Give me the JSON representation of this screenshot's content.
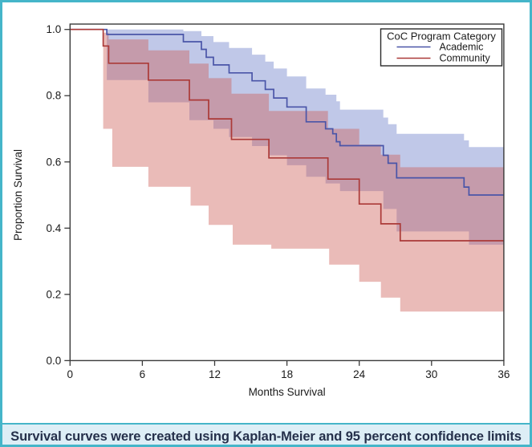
{
  "figure": {
    "caption": "Survival curves were created using Kaplan-Meier and 95 percent confidence limits",
    "border_color": "#45b5c9",
    "caption_bg": "#ddeef6",
    "caption_text_color": "#25304b",
    "plot_bg": "#ffffff"
  },
  "chart_data": {
    "type": "line",
    "subtype": "kaplan-meier-step-with-confidence-bands",
    "title": "",
    "xlabel": "Months Survival",
    "ylabel": "Proportion Survival",
    "xlim": [
      0,
      36
    ],
    "ylim": [
      0.0,
      1.0
    ],
    "xticks": [
      "0",
      "6",
      "12",
      "18",
      "24",
      "30",
      "36"
    ],
    "yticks": [
      "0.0",
      "0.2",
      "0.4",
      "0.6",
      "0.8",
      "1.0"
    ],
    "grid": false,
    "confidence_level": "95 percent",
    "legend": {
      "title": "CoC Program Category",
      "position": "top-right",
      "entries": [
        {
          "label": "Academic",
          "color": "#4a55a8"
        },
        {
          "label": "Community",
          "color": "#ab3a38"
        }
      ]
    },
    "series": [
      {
        "name": "Academic",
        "color": "#4a55a8",
        "band_fill": "#c0c8e8",
        "start": [
          0,
          1.0
        ],
        "end_month": 36,
        "steps": [
          [
            3.05,
            0.985
          ],
          [
            9.4,
            0.963
          ],
          [
            10.9,
            0.94
          ],
          [
            11.3,
            0.916
          ],
          [
            11.9,
            0.893
          ],
          [
            13.2,
            0.869
          ],
          [
            15.1,
            0.845
          ],
          [
            16.2,
            0.819
          ],
          [
            16.9,
            0.793
          ],
          [
            18.0,
            0.766
          ],
          [
            19.6,
            0.721
          ],
          [
            21.2,
            0.7
          ],
          [
            21.8,
            0.685
          ],
          [
            22.1,
            0.661
          ],
          [
            22.4,
            0.649
          ],
          [
            26.0,
            0.62
          ],
          [
            26.4,
            0.596
          ],
          [
            27.1,
            0.552
          ],
          [
            32.7,
            0.524
          ],
          [
            33.1,
            0.5
          ]
        ],
        "ci_upper": [
          [
            9.4,
            0.995
          ],
          [
            10.9,
            0.98
          ],
          [
            11.9,
            0.962
          ],
          [
            13.2,
            0.944
          ],
          [
            15.1,
            0.924
          ],
          [
            16.2,
            0.903
          ],
          [
            16.9,
            0.882
          ],
          [
            18.0,
            0.858
          ],
          [
            19.6,
            0.822
          ],
          [
            21.2,
            0.803
          ],
          [
            22.1,
            0.783
          ],
          [
            22.4,
            0.758
          ],
          [
            26.0,
            0.734
          ],
          [
            26.4,
            0.714
          ],
          [
            27.1,
            0.685
          ],
          [
            32.7,
            0.665
          ],
          [
            33.1,
            0.645
          ]
        ],
        "ci_lower": [
          [
            3.05,
            0.847
          ],
          [
            6.5,
            0.78
          ],
          [
            9.9,
            0.726
          ],
          [
            11.9,
            0.7
          ],
          [
            13.2,
            0.675
          ],
          [
            15.1,
            0.648
          ],
          [
            16.5,
            0.62
          ],
          [
            18.0,
            0.59
          ],
          [
            19.6,
            0.555
          ],
          [
            21.2,
            0.535
          ],
          [
            22.4,
            0.512
          ],
          [
            26.0,
            0.458
          ],
          [
            27.1,
            0.39
          ],
          [
            33.1,
            0.35
          ]
        ]
      },
      {
        "name": "Community",
        "color": "#ab3a38",
        "band_fill": "rgba(205,92,85,0.42)",
        "start": [
          0,
          1.0
        ],
        "end_month": 36,
        "steps": [
          [
            2.75,
            0.95
          ],
          [
            3.2,
            0.898
          ],
          [
            6.5,
            0.847
          ],
          [
            9.9,
            0.787
          ],
          [
            11.5,
            0.73
          ],
          [
            13.4,
            0.668
          ],
          [
            16.5,
            0.612
          ],
          [
            21.4,
            0.548
          ],
          [
            24.0,
            0.473
          ],
          [
            25.8,
            0.413
          ],
          [
            27.4,
            0.362
          ]
        ],
        "ci_upper": [
          [
            2.75,
            0.99
          ],
          [
            3.2,
            0.97
          ],
          [
            6.5,
            0.937
          ],
          [
            9.9,
            0.897
          ],
          [
            11.5,
            0.853
          ],
          [
            13.4,
            0.806
          ],
          [
            16.5,
            0.754
          ],
          [
            21.4,
            0.7
          ],
          [
            24.0,
            0.652
          ],
          [
            25.8,
            0.622
          ],
          [
            27.4,
            0.584
          ]
        ],
        "ci_lower": [
          [
            2.75,
            0.7
          ],
          [
            3.5,
            0.585
          ],
          [
            6.5,
            0.525
          ],
          [
            10.0,
            0.468
          ],
          [
            11.5,
            0.41
          ],
          [
            13.5,
            0.35
          ],
          [
            16.7,
            0.338
          ],
          [
            21.5,
            0.29
          ],
          [
            24.0,
            0.238
          ],
          [
            25.8,
            0.19
          ],
          [
            27.4,
            0.148
          ]
        ]
      }
    ]
  }
}
